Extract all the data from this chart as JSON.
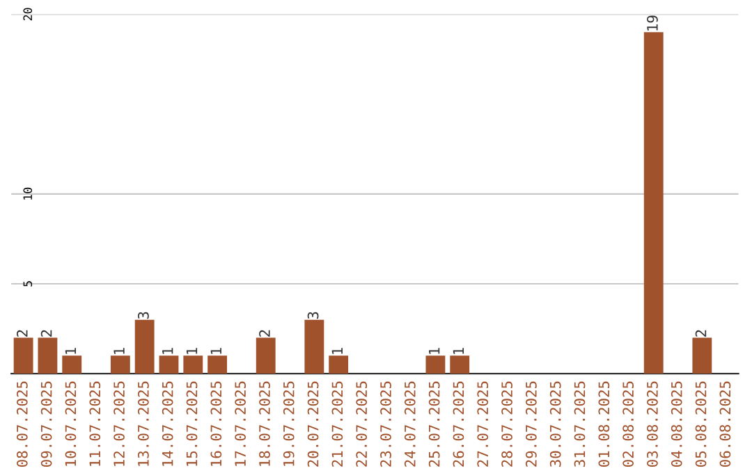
{
  "chart_data": {
    "type": "bar",
    "categories": [
      "08.07.2025",
      "09.07.2025",
      "10.07.2025",
      "11.07.2025",
      "12.07.2025",
      "13.07.2025",
      "14.07.2025",
      "15.07.2025",
      "16.07.2025",
      "17.07.2025",
      "18.07.2025",
      "19.07.2025",
      "20.07.2025",
      "21.07.2025",
      "22.07.2025",
      "23.07.2025",
      "24.07.2025",
      "25.07.2025",
      "26.07.2025",
      "27.07.2025",
      "28.07.2025",
      "29.07.2025",
      "30.07.2025",
      "31.07.2025",
      "01.08.2025",
      "02.08.2025",
      "03.08.2025",
      "04.08.2025",
      "05.08.2025",
      "06.08.2025"
    ],
    "values": [
      2,
      2,
      1,
      0,
      1,
      3,
      1,
      1,
      1,
      0,
      2,
      0,
      3,
      1,
      0,
      0,
      0,
      1,
      1,
      0,
      0,
      0,
      0,
      0,
      0,
      0,
      19,
      0,
      2,
      0
    ],
    "value_labels": [
      "2",
      "2",
      "1",
      null,
      "1",
      "3",
      "1",
      "1",
      "1",
      null,
      "2",
      null,
      "3",
      "1",
      null,
      null,
      null,
      "1",
      "1",
      null,
      null,
      null,
      null,
      null,
      null,
      null,
      "19",
      null,
      "2",
      null
    ],
    "color": "#a0522d",
    "ylim": [
      0,
      20
    ],
    "yticks": [
      5,
      10,
      20
    ],
    "grid": "y"
  }
}
